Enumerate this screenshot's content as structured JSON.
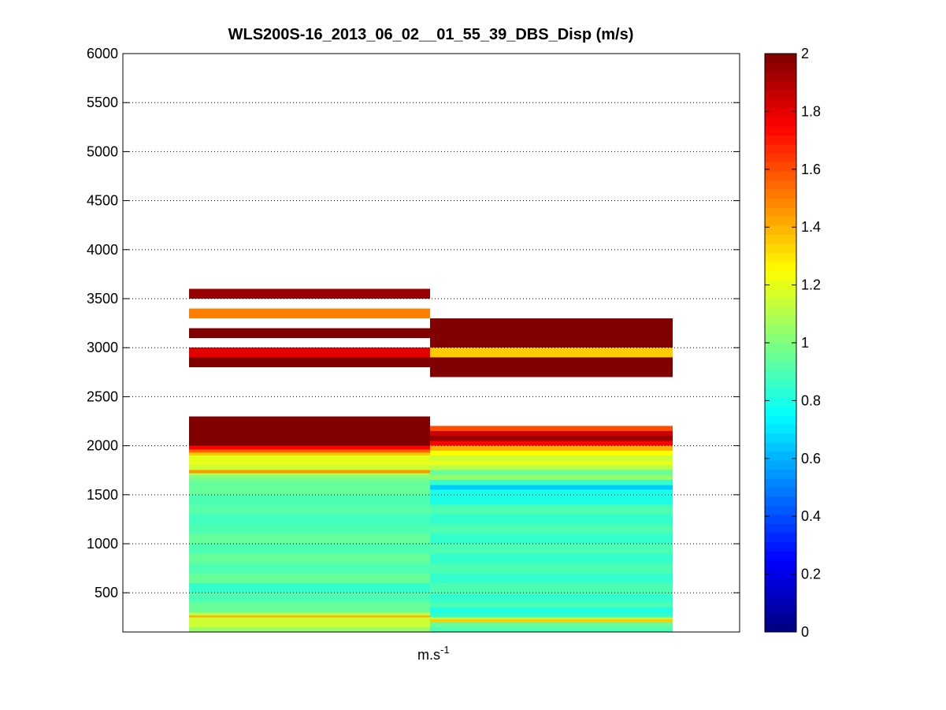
{
  "figure": {
    "title": "WLS200S-16_2013_06_02__01_55_39_DBS_Disp (m/s)",
    "xlabel_base": "m.s",
    "xlabel_sup": "-1"
  },
  "chart_data": {
    "type": "heatmap",
    "title": "WLS200S-16_2013_06_02__01_55_39_DBS_Disp (m/s)",
    "xlabel": "m.s-1",
    "ylabel": "",
    "ylim": [
      100,
      6000
    ],
    "yticks": [
      500,
      1000,
      1500,
      2000,
      2500,
      3000,
      3500,
      4000,
      4500,
      5000,
      5500,
      6000
    ],
    "grid": "horizontal dotted",
    "colormap": "jet",
    "clim": [
      0,
      2
    ],
    "colorbar_ticks": [
      0,
      0.2,
      0.4,
      0.6,
      0.8,
      1,
      1.2,
      1.4,
      1.6,
      1.8,
      2
    ],
    "columns": [
      {
        "column": 1,
        "segments": [
          {
            "y0": 100,
            "y1": 150,
            "v": 1.05
          },
          {
            "y0": 150,
            "y1": 250,
            "v": 1.15
          },
          {
            "y0": 250,
            "y1": 270,
            "v": 1.4
          },
          {
            "y0": 270,
            "y1": 300,
            "v": 1.1
          },
          {
            "y0": 300,
            "y1": 400,
            "v": 0.95
          },
          {
            "y0": 400,
            "y1": 500,
            "v": 0.9
          },
          {
            "y0": 500,
            "y1": 600,
            "v": 0.85
          },
          {
            "y0": 600,
            "y1": 700,
            "v": 0.95
          },
          {
            "y0": 700,
            "y1": 800,
            "v": 0.9
          },
          {
            "y0": 800,
            "y1": 900,
            "v": 0.95
          },
          {
            "y0": 900,
            "y1": 1000,
            "v": 0.9
          },
          {
            "y0": 1000,
            "y1": 1100,
            "v": 0.95
          },
          {
            "y0": 1100,
            "y1": 1200,
            "v": 0.9
          },
          {
            "y0": 1200,
            "y1": 1300,
            "v": 0.88
          },
          {
            "y0": 1300,
            "y1": 1400,
            "v": 0.92
          },
          {
            "y0": 1400,
            "y1": 1500,
            "v": 0.9
          },
          {
            "y0": 1500,
            "y1": 1600,
            "v": 0.95
          },
          {
            "y0": 1600,
            "y1": 1650,
            "v": 0.95
          },
          {
            "y0": 1650,
            "y1": 1700,
            "v": 1.0
          },
          {
            "y0": 1700,
            "y1": 1720,
            "v": 1.1
          },
          {
            "y0": 1720,
            "y1": 1750,
            "v": 1.45
          },
          {
            "y0": 1750,
            "y1": 1800,
            "v": 1.15
          },
          {
            "y0": 1800,
            "y1": 1850,
            "v": 1.2
          },
          {
            "y0": 1850,
            "y1": 1900,
            "v": 1.2
          },
          {
            "y0": 1900,
            "y1": 1930,
            "v": 1.35
          },
          {
            "y0": 1930,
            "y1": 1960,
            "v": 1.55
          },
          {
            "y0": 1960,
            "y1": 2000,
            "v": 1.75
          },
          {
            "y0": 2000,
            "y1": 2300,
            "v": 2.0
          },
          {
            "y0": 2800,
            "y1": 2900,
            "v": 2.0
          },
          {
            "y0": 2900,
            "y1": 3000,
            "v": 1.8
          },
          {
            "y0": 3100,
            "y1": 3200,
            "v": 2.0
          },
          {
            "y0": 3300,
            "y1": 3400,
            "v": 1.5
          },
          {
            "y0": 3500,
            "y1": 3600,
            "v": 1.95
          }
        ]
      },
      {
        "column": 2,
        "segments": [
          {
            "y0": 100,
            "y1": 150,
            "v": 0.9
          },
          {
            "y0": 150,
            "y1": 200,
            "v": 0.95
          },
          {
            "y0": 200,
            "y1": 230,
            "v": 1.35
          },
          {
            "y0": 230,
            "y1": 250,
            "v": 1.15
          },
          {
            "y0": 250,
            "y1": 300,
            "v": 0.85
          },
          {
            "y0": 300,
            "y1": 350,
            "v": 0.8
          },
          {
            "y0": 350,
            "y1": 400,
            "v": 0.9
          },
          {
            "y0": 400,
            "y1": 500,
            "v": 0.85
          },
          {
            "y0": 500,
            "y1": 600,
            "v": 0.9
          },
          {
            "y0": 600,
            "y1": 700,
            "v": 0.85
          },
          {
            "y0": 700,
            "y1": 800,
            "v": 0.9
          },
          {
            "y0": 800,
            "y1": 900,
            "v": 0.85
          },
          {
            "y0": 900,
            "y1": 1000,
            "v": 0.9
          },
          {
            "y0": 1000,
            "y1": 1100,
            "v": 0.85
          },
          {
            "y0": 1100,
            "y1": 1200,
            "v": 0.9
          },
          {
            "y0": 1200,
            "y1": 1300,
            "v": 0.85
          },
          {
            "y0": 1300,
            "y1": 1400,
            "v": 0.9
          },
          {
            "y0": 1400,
            "y1": 1500,
            "v": 0.8
          },
          {
            "y0": 1500,
            "y1": 1550,
            "v": 0.8
          },
          {
            "y0": 1550,
            "y1": 1600,
            "v": 0.65
          },
          {
            "y0": 1600,
            "y1": 1650,
            "v": 0.85
          },
          {
            "y0": 1650,
            "y1": 1700,
            "v": 1.05
          },
          {
            "y0": 1700,
            "y1": 1750,
            "v": 0.95
          },
          {
            "y0": 1750,
            "y1": 1800,
            "v": 1.1
          },
          {
            "y0": 1800,
            "y1": 1850,
            "v": 1.2
          },
          {
            "y0": 1850,
            "y1": 1900,
            "v": 1.15
          },
          {
            "y0": 1900,
            "y1": 1950,
            "v": 1.25
          },
          {
            "y0": 1950,
            "y1": 2000,
            "v": 1.4
          },
          {
            "y0": 2000,
            "y1": 2050,
            "v": 1.75
          },
          {
            "y0": 2050,
            "y1": 2100,
            "v": 1.95
          },
          {
            "y0": 2100,
            "y1": 2150,
            "v": 1.85
          },
          {
            "y0": 2150,
            "y1": 2200,
            "v": 1.6
          },
          {
            "y0": 2700,
            "y1": 2900,
            "v": 2.0
          },
          {
            "y0": 2900,
            "y1": 3000,
            "v": 1.35
          },
          {
            "y0": 3000,
            "y1": 3300,
            "v": 2.0
          }
        ]
      }
    ]
  }
}
